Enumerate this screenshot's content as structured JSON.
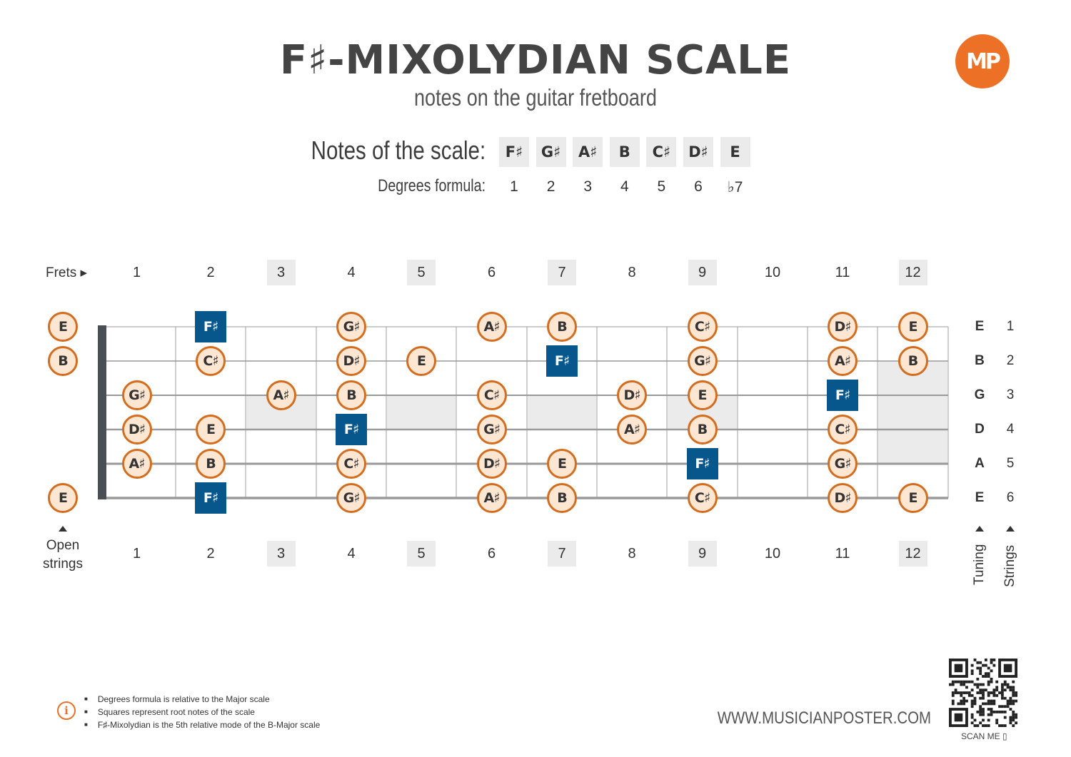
{
  "title": "F♯-MIXOLYDIAN SCALE",
  "subtitle": "notes on the guitar fretboard",
  "logo_text": "MP",
  "notes_label": "Notes of the scale:",
  "degrees_label": "Degrees formula:",
  "scale_notes": [
    "F♯",
    "G♯",
    "A♯",
    "B",
    "C♯",
    "D♯",
    "E"
  ],
  "degrees": [
    "1",
    "2",
    "3",
    "4",
    "5",
    "6",
    "♭7"
  ],
  "frets_label": "Frets ▸",
  "fret_numbers": [
    "1",
    "2",
    "3",
    "4",
    "5",
    "6",
    "7",
    "8",
    "9",
    "10",
    "11",
    "12"
  ],
  "marker_frets": [
    3,
    5,
    7,
    9,
    12
  ],
  "open_label_line1": "Open",
  "open_label_line2": "strings",
  "tuning_label": "Tuning",
  "strings_label": "Strings",
  "strings": [
    {
      "tuning": "E",
      "number": "1",
      "notes": [
        {
          "fret": 0,
          "n": "E"
        },
        {
          "fret": 2,
          "n": "F♯",
          "root": true
        },
        {
          "fret": 4,
          "n": "G♯"
        },
        {
          "fret": 6,
          "n": "A♯"
        },
        {
          "fret": 7,
          "n": "B"
        },
        {
          "fret": 9,
          "n": "C♯"
        },
        {
          "fret": 11,
          "n": "D♯"
        },
        {
          "fret": 12,
          "n": "E"
        }
      ]
    },
    {
      "tuning": "B",
      "number": "2",
      "notes": [
        {
          "fret": 0,
          "n": "B"
        },
        {
          "fret": 2,
          "n": "C♯"
        },
        {
          "fret": 4,
          "n": "D♯"
        },
        {
          "fret": 5,
          "n": "E"
        },
        {
          "fret": 7,
          "n": "F♯",
          "root": true
        },
        {
          "fret": 9,
          "n": "G♯"
        },
        {
          "fret": 11,
          "n": "A♯"
        },
        {
          "fret": 12,
          "n": "B"
        }
      ]
    },
    {
      "tuning": "G",
      "number": "3",
      "notes": [
        {
          "fret": 1,
          "n": "G♯"
        },
        {
          "fret": 3,
          "n": "A♯"
        },
        {
          "fret": 4,
          "n": "B"
        },
        {
          "fret": 6,
          "n": "C♯"
        },
        {
          "fret": 8,
          "n": "D♯"
        },
        {
          "fret": 9,
          "n": "E"
        },
        {
          "fret": 11,
          "n": "F♯",
          "root": true
        }
      ]
    },
    {
      "tuning": "D",
      "number": "4",
      "notes": [
        {
          "fret": 1,
          "n": "D♯"
        },
        {
          "fret": 2,
          "n": "E"
        },
        {
          "fret": 4,
          "n": "F♯",
          "root": true
        },
        {
          "fret": 6,
          "n": "G♯"
        },
        {
          "fret": 8,
          "n": "A♯"
        },
        {
          "fret": 9,
          "n": "B"
        },
        {
          "fret": 11,
          "n": "C♯"
        }
      ]
    },
    {
      "tuning": "A",
      "number": "5",
      "notes": [
        {
          "fret": 1,
          "n": "A♯"
        },
        {
          "fret": 2,
          "n": "B"
        },
        {
          "fret": 4,
          "n": "C♯"
        },
        {
          "fret": 6,
          "n": "D♯"
        },
        {
          "fret": 7,
          "n": "E"
        },
        {
          "fret": 9,
          "n": "F♯",
          "root": true
        },
        {
          "fret": 11,
          "n": "G♯"
        }
      ]
    },
    {
      "tuning": "E",
      "number": "6",
      "notes": [
        {
          "fret": 0,
          "n": "E"
        },
        {
          "fret": 2,
          "n": "F♯",
          "root": true
        },
        {
          "fret": 4,
          "n": "G♯"
        },
        {
          "fret": 6,
          "n": "A♯"
        },
        {
          "fret": 7,
          "n": "B"
        },
        {
          "fret": 9,
          "n": "C♯"
        },
        {
          "fret": 11,
          "n": "D♯"
        },
        {
          "fret": 12,
          "n": "E"
        }
      ]
    }
  ],
  "footer_notes": [
    "Degrees formula is relative to the Major scale",
    "Squares represent root notes of the scale",
    "F♯-Mixolydian is the 5th relative mode of the B-Major scale"
  ],
  "website": "WWW.MUSICIANPOSTER.COM",
  "scan_label": "SCAN ME",
  "colors": {
    "accent": "#ec7026",
    "note_fill": "#fde7d3",
    "note_border": "#d36d1f",
    "root_fill": "#07578c",
    "marker_shade": "#ebebeb"
  }
}
